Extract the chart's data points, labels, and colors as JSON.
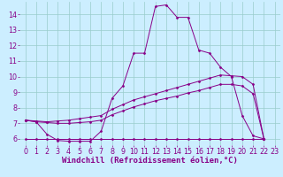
{
  "background_color": "#cceeff",
  "line_color": "#880088",
  "grid_color": "#99cccc",
  "xlabel": "Windchill (Refroidissement éolien,°C)",
  "xlabel_fontsize": 6.5,
  "tick_fontsize": 5.8,
  "xlim": [
    -0.5,
    23.5
  ],
  "ylim": [
    5.6,
    14.8
  ],
  "yticks": [
    6,
    7,
    8,
    9,
    10,
    11,
    12,
    13,
    14
  ],
  "xticks": [
    0,
    1,
    2,
    3,
    4,
    5,
    6,
    7,
    8,
    9,
    10,
    11,
    12,
    13,
    14,
    15,
    16,
    17,
    18,
    19,
    20,
    21,
    22,
    23
  ],
  "series": [
    [
      7.2,
      7.1,
      6.3,
      5.9,
      5.85,
      5.85,
      5.85,
      6.5,
      8.6,
      9.4,
      11.5,
      11.5,
      14.5,
      14.6,
      13.8,
      13.8,
      11.7,
      11.5,
      10.6,
      10.0,
      7.5,
      6.2,
      6.0
    ],
    [
      7.2,
      7.15,
      7.1,
      7.15,
      7.2,
      7.3,
      7.4,
      7.5,
      7.9,
      8.2,
      8.5,
      8.7,
      8.9,
      9.1,
      9.3,
      9.5,
      9.7,
      9.9,
      10.1,
      10.05,
      10.0,
      9.5,
      6.0
    ],
    [
      7.2,
      7.1,
      7.05,
      7.0,
      7.0,
      7.05,
      7.1,
      7.2,
      7.55,
      7.8,
      8.05,
      8.25,
      8.45,
      8.6,
      8.75,
      8.95,
      9.1,
      9.3,
      9.5,
      9.5,
      9.4,
      8.9,
      6.0
    ],
    [
      6.0,
      6.0,
      6.0,
      6.0,
      6.0,
      6.0,
      6.0,
      6.0,
      6.0,
      6.0,
      6.0,
      6.0,
      6.0,
      6.0,
      6.0,
      6.0,
      6.0,
      6.0,
      6.0,
      6.0,
      6.0,
      6.0,
      6.0
    ]
  ]
}
